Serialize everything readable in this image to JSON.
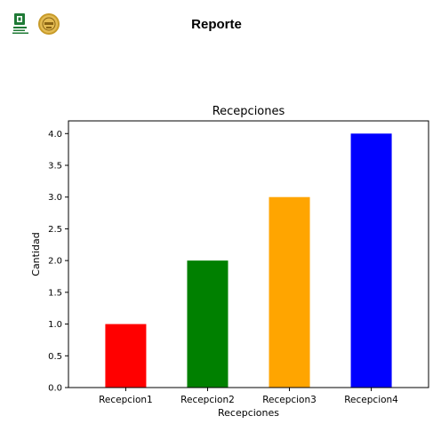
{
  "report": {
    "title": "Reporte"
  },
  "chart_data": {
    "type": "bar",
    "title": "Recepciones",
    "xlabel": "Recepciones",
    "ylabel": "Cantidad",
    "categories": [
      "Recepcion1",
      "Recepcion2",
      "Recepcion3",
      "Recepcion4"
    ],
    "values": [
      1,
      2,
      3,
      4
    ],
    "colors": [
      "#ff0000",
      "#008000",
      "#ffa500",
      "#0000ff"
    ],
    "ylim": [
      0,
      4.2
    ],
    "yticks": [
      "0.0",
      "0.5",
      "1.0",
      "1.5",
      "2.0",
      "2.5",
      "3.0",
      "3.5",
      "4.0"
    ],
    "grid": false,
    "legend": "none"
  }
}
